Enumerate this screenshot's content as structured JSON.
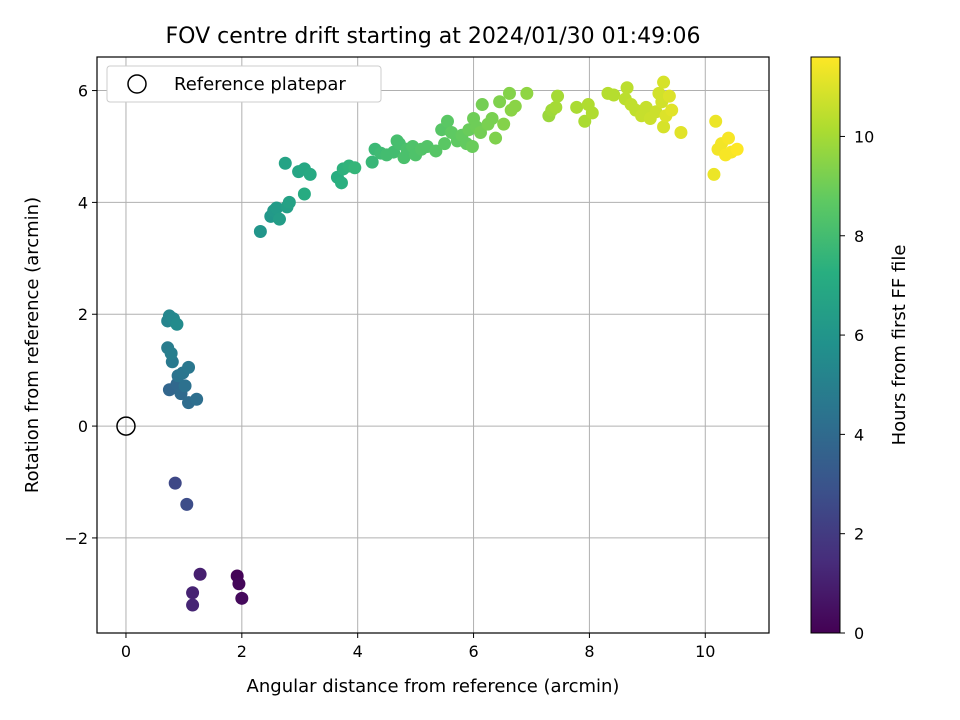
{
  "chart_data": {
    "type": "scatter",
    "title": "FOV centre drift starting at 2024/01/30 01:49:06",
    "xlabel": "Angular distance from reference (arcmin)",
    "ylabel": "Rotation from reference (arcmin)",
    "xlim": [
      -0.5,
      11.1
    ],
    "ylim": [
      -3.7,
      6.6
    ],
    "xticks": [
      0,
      2,
      4,
      6,
      8,
      10
    ],
    "yticks": [
      -2,
      0,
      2,
      4,
      6
    ],
    "ytick_labels": [
      "−2",
      "0",
      "2",
      "4",
      "6"
    ],
    "grid": true,
    "legend": {
      "position": "top-left",
      "entries": [
        "Reference platepar"
      ]
    },
    "reference_point": {
      "x": 0,
      "y": 0,
      "marker": "open-circle"
    },
    "colorbar": {
      "label": "Hours from first FF file",
      "min": 0,
      "max": 11.6,
      "ticks": [
        0,
        2,
        4,
        6,
        8,
        10
      ],
      "colormap": "viridis"
    },
    "points": [
      {
        "x": 1.92,
        "y": -2.68,
        "h": 0.1
      },
      {
        "x": 1.95,
        "y": -2.82,
        "h": 0.2
      },
      {
        "x": 2.0,
        "y": -3.08,
        "h": 0.3
      },
      {
        "x": 1.28,
        "y": -2.65,
        "h": 1.0
      },
      {
        "x": 1.15,
        "y": -2.98,
        "h": 1.1
      },
      {
        "x": 1.15,
        "y": -3.2,
        "h": 1.2
      },
      {
        "x": 0.85,
        "y": -1.02,
        "h": 2.5
      },
      {
        "x": 1.05,
        "y": -1.4,
        "h": 2.7
      },
      {
        "x": 0.75,
        "y": 0.65,
        "h": 3.8
      },
      {
        "x": 0.88,
        "y": 0.75,
        "h": 3.9
      },
      {
        "x": 0.95,
        "y": 0.58,
        "h": 4.0
      },
      {
        "x": 1.08,
        "y": 0.42,
        "h": 4.1
      },
      {
        "x": 1.22,
        "y": 0.48,
        "h": 4.2
      },
      {
        "x": 1.02,
        "y": 0.72,
        "h": 4.3
      },
      {
        "x": 0.9,
        "y": 0.9,
        "h": 4.4
      },
      {
        "x": 0.98,
        "y": 0.95,
        "h": 4.5
      },
      {
        "x": 1.08,
        "y": 1.05,
        "h": 4.6
      },
      {
        "x": 0.8,
        "y": 1.15,
        "h": 4.7
      },
      {
        "x": 0.72,
        "y": 1.4,
        "h": 4.8
      },
      {
        "x": 0.78,
        "y": 1.3,
        "h": 4.9
      },
      {
        "x": 0.72,
        "y": 1.88,
        "h": 5.2
      },
      {
        "x": 0.75,
        "y": 1.97,
        "h": 5.3
      },
      {
        "x": 0.82,
        "y": 1.92,
        "h": 5.4
      },
      {
        "x": 0.88,
        "y": 1.82,
        "h": 5.5
      },
      {
        "x": 2.32,
        "y": 3.48,
        "h": 6.0
      },
      {
        "x": 2.5,
        "y": 3.75,
        "h": 6.1
      },
      {
        "x": 2.55,
        "y": 3.85,
        "h": 6.2
      },
      {
        "x": 2.6,
        "y": 3.9,
        "h": 6.3
      },
      {
        "x": 2.65,
        "y": 3.7,
        "h": 6.4
      },
      {
        "x": 2.78,
        "y": 3.92,
        "h": 6.5
      },
      {
        "x": 2.82,
        "y": 4.0,
        "h": 6.6
      },
      {
        "x": 2.75,
        "y": 4.7,
        "h": 6.7
      },
      {
        "x": 2.98,
        "y": 4.55,
        "h": 6.8
      },
      {
        "x": 3.08,
        "y": 4.6,
        "h": 6.9
      },
      {
        "x": 3.18,
        "y": 4.5,
        "h": 7.0
      },
      {
        "x": 3.08,
        "y": 4.15,
        "h": 7.1
      },
      {
        "x": 3.65,
        "y": 4.45,
        "h": 7.2
      },
      {
        "x": 3.72,
        "y": 4.35,
        "h": 7.3
      },
      {
        "x": 3.75,
        "y": 4.6,
        "h": 7.4
      },
      {
        "x": 3.85,
        "y": 4.65,
        "h": 7.5
      },
      {
        "x": 3.95,
        "y": 4.62,
        "h": 7.6
      },
      {
        "x": 4.25,
        "y": 4.72,
        "h": 7.7
      },
      {
        "x": 4.3,
        "y": 4.95,
        "h": 7.8
      },
      {
        "x": 4.4,
        "y": 4.88,
        "h": 7.9
      },
      {
        "x": 4.5,
        "y": 4.85,
        "h": 8.0
      },
      {
        "x": 4.62,
        "y": 4.9,
        "h": 8.0
      },
      {
        "x": 4.68,
        "y": 5.1,
        "h": 8.1
      },
      {
        "x": 4.72,
        "y": 5.05,
        "h": 8.1
      },
      {
        "x": 4.8,
        "y": 4.8,
        "h": 8.2
      },
      {
        "x": 4.85,
        "y": 4.95,
        "h": 8.2
      },
      {
        "x": 4.95,
        "y": 5.0,
        "h": 8.3
      },
      {
        "x": 5.0,
        "y": 4.85,
        "h": 8.3
      },
      {
        "x": 5.1,
        "y": 4.95,
        "h": 8.4
      },
      {
        "x": 5.2,
        "y": 5.0,
        "h": 8.4
      },
      {
        "x": 5.35,
        "y": 4.92,
        "h": 8.5
      },
      {
        "x": 5.45,
        "y": 5.3,
        "h": 8.5
      },
      {
        "x": 5.5,
        "y": 5.05,
        "h": 8.6
      },
      {
        "x": 5.55,
        "y": 5.45,
        "h": 8.6
      },
      {
        "x": 5.62,
        "y": 5.25,
        "h": 8.7
      },
      {
        "x": 5.72,
        "y": 5.1,
        "h": 8.7
      },
      {
        "x": 5.8,
        "y": 5.2,
        "h": 8.8
      },
      {
        "x": 5.88,
        "y": 5.05,
        "h": 8.8
      },
      {
        "x": 5.92,
        "y": 5.3,
        "h": 8.9
      },
      {
        "x": 5.98,
        "y": 5.0,
        "h": 8.9
      },
      {
        "x": 6.0,
        "y": 5.5,
        "h": 9.0
      },
      {
        "x": 6.05,
        "y": 5.35,
        "h": 9.0
      },
      {
        "x": 6.12,
        "y": 5.25,
        "h": 9.1
      },
      {
        "x": 6.15,
        "y": 5.75,
        "h": 9.1
      },
      {
        "x": 6.25,
        "y": 5.4,
        "h": 9.2
      },
      {
        "x": 6.32,
        "y": 5.5,
        "h": 9.2
      },
      {
        "x": 6.38,
        "y": 5.15,
        "h": 9.3
      },
      {
        "x": 6.45,
        "y": 5.8,
        "h": 9.3
      },
      {
        "x": 6.52,
        "y": 5.4,
        "h": 9.4
      },
      {
        "x": 6.62,
        "y": 5.95,
        "h": 9.4
      },
      {
        "x": 6.65,
        "y": 5.65,
        "h": 9.5
      },
      {
        "x": 6.72,
        "y": 5.72,
        "h": 9.5
      },
      {
        "x": 6.92,
        "y": 5.95,
        "h": 9.6
      },
      {
        "x": 7.3,
        "y": 5.55,
        "h": 9.8
      },
      {
        "x": 7.35,
        "y": 5.65,
        "h": 9.9
      },
      {
        "x": 7.42,
        "y": 5.7,
        "h": 10.0
      },
      {
        "x": 7.45,
        "y": 5.9,
        "h": 10.0
      },
      {
        "x": 7.78,
        "y": 5.7,
        "h": 10.1
      },
      {
        "x": 7.92,
        "y": 5.45,
        "h": 10.1
      },
      {
        "x": 7.98,
        "y": 5.75,
        "h": 10.2
      },
      {
        "x": 8.05,
        "y": 5.6,
        "h": 10.2
      },
      {
        "x": 8.32,
        "y": 5.95,
        "h": 10.3
      },
      {
        "x": 8.42,
        "y": 5.92,
        "h": 10.3
      },
      {
        "x": 8.62,
        "y": 5.85,
        "h": 10.4
      },
      {
        "x": 8.65,
        "y": 6.05,
        "h": 10.4
      },
      {
        "x": 8.72,
        "y": 5.75,
        "h": 10.5
      },
      {
        "x": 8.8,
        "y": 5.65,
        "h": 10.5
      },
      {
        "x": 8.9,
        "y": 5.55,
        "h": 10.6
      },
      {
        "x": 8.98,
        "y": 5.7,
        "h": 10.6
      },
      {
        "x": 9.05,
        "y": 5.5,
        "h": 10.7
      },
      {
        "x": 9.15,
        "y": 5.62,
        "h": 10.7
      },
      {
        "x": 9.2,
        "y": 5.95,
        "h": 10.8
      },
      {
        "x": 9.25,
        "y": 5.8,
        "h": 10.8
      },
      {
        "x": 9.28,
        "y": 5.35,
        "h": 10.9
      },
      {
        "x": 9.28,
        "y": 6.15,
        "h": 10.9
      },
      {
        "x": 9.32,
        "y": 5.55,
        "h": 11.0
      },
      {
        "x": 9.38,
        "y": 5.9,
        "h": 11.0
      },
      {
        "x": 9.42,
        "y": 5.65,
        "h": 11.1
      },
      {
        "x": 9.58,
        "y": 5.25,
        "h": 11.1
      },
      {
        "x": 10.15,
        "y": 4.5,
        "h": 11.3
      },
      {
        "x": 10.18,
        "y": 5.45,
        "h": 11.3
      },
      {
        "x": 10.22,
        "y": 4.95,
        "h": 11.4
      },
      {
        "x": 10.28,
        "y": 5.05,
        "h": 11.4
      },
      {
        "x": 10.35,
        "y": 4.85,
        "h": 11.5
      },
      {
        "x": 10.4,
        "y": 5.15,
        "h": 11.5
      },
      {
        "x": 10.45,
        "y": 4.9,
        "h": 11.5
      },
      {
        "x": 10.55,
        "y": 4.95,
        "h": 11.6
      }
    ]
  }
}
